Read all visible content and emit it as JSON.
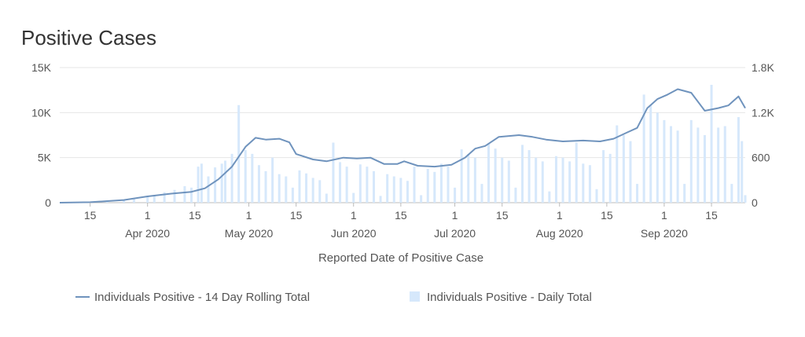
{
  "chart_data": {
    "type": "bar+line",
    "title": "Positive Cases",
    "xlabel": "Reported Date of Positive Case",
    "x_start": "2020-03-06",
    "x_end": "2020-09-25",
    "x_ticks": [
      {
        "date": "2020-03-15",
        "label": "15",
        "sub": ""
      },
      {
        "date": "2020-04-01",
        "label": "1",
        "sub": "Apr 2020"
      },
      {
        "date": "2020-04-15",
        "label": "15",
        "sub": ""
      },
      {
        "date": "2020-05-01",
        "label": "1",
        "sub": "May 2020"
      },
      {
        "date": "2020-05-15",
        "label": "15",
        "sub": ""
      },
      {
        "date": "2020-06-01",
        "label": "1",
        "sub": "Jun 2020"
      },
      {
        "date": "2020-06-15",
        "label": "15",
        "sub": ""
      },
      {
        "date": "2020-07-01",
        "label": "1",
        "sub": "Jul 2020"
      },
      {
        "date": "2020-07-15",
        "label": "15",
        "sub": ""
      },
      {
        "date": "2020-08-01",
        "label": "1",
        "sub": "Aug 2020"
      },
      {
        "date": "2020-08-15",
        "label": "15",
        "sub": ""
      },
      {
        "date": "2020-09-01",
        "label": "1",
        "sub": "Sep 2020"
      },
      {
        "date": "2020-09-15",
        "label": "15",
        "sub": ""
      }
    ],
    "y_left": {
      "min": 0,
      "max": 15000,
      "ticks": [
        0,
        5000,
        10000,
        15000
      ],
      "tick_labels": [
        "0",
        "5K",
        "10K",
        "15K"
      ]
    },
    "y_right": {
      "min": 0,
      "max": 1800,
      "ticks": [
        0,
        600,
        1200,
        1800
      ],
      "tick_labels": [
        "0",
        "600",
        "1.2K",
        "1.8K"
      ]
    },
    "legend_position": "bottom",
    "series": [
      {
        "name": "Individuals Positive - 14 Day Rolling Total",
        "kind": "line",
        "axis": "left",
        "color": "#6f93bd",
        "points": [
          [
            "2020-03-06",
            0
          ],
          [
            "2020-03-15",
            50
          ],
          [
            "2020-03-25",
            300
          ],
          [
            "2020-04-01",
            700
          ],
          [
            "2020-04-08",
            1000
          ],
          [
            "2020-04-14",
            1200
          ],
          [
            "2020-04-18",
            1600
          ],
          [
            "2020-04-22",
            2600
          ],
          [
            "2020-04-26",
            4000
          ],
          [
            "2020-04-30",
            6200
          ],
          [
            "2020-05-03",
            7200
          ],
          [
            "2020-05-06",
            7000
          ],
          [
            "2020-05-10",
            7100
          ],
          [
            "2020-05-13",
            6700
          ],
          [
            "2020-05-15",
            5400
          ],
          [
            "2020-05-20",
            4800
          ],
          [
            "2020-05-24",
            4600
          ],
          [
            "2020-05-29",
            5000
          ],
          [
            "2020-06-02",
            4900
          ],
          [
            "2020-06-06",
            5000
          ],
          [
            "2020-06-10",
            4300
          ],
          [
            "2020-06-14",
            4300
          ],
          [
            "2020-06-16",
            4600
          ],
          [
            "2020-06-20",
            4100
          ],
          [
            "2020-06-25",
            4000
          ],
          [
            "2020-06-30",
            4200
          ],
          [
            "2020-07-04",
            5000
          ],
          [
            "2020-07-07",
            6000
          ],
          [
            "2020-07-10",
            6300
          ],
          [
            "2020-07-14",
            7300
          ],
          [
            "2020-07-20",
            7500
          ],
          [
            "2020-07-24",
            7300
          ],
          [
            "2020-07-28",
            7000
          ],
          [
            "2020-08-02",
            6800
          ],
          [
            "2020-08-08",
            6900
          ],
          [
            "2020-08-13",
            6800
          ],
          [
            "2020-08-17",
            7100
          ],
          [
            "2020-08-21",
            7800
          ],
          [
            "2020-08-24",
            8300
          ],
          [
            "2020-08-27",
            10500
          ],
          [
            "2020-08-30",
            11500
          ],
          [
            "2020-09-02",
            12000
          ],
          [
            "2020-09-05",
            12600
          ],
          [
            "2020-09-09",
            12200
          ],
          [
            "2020-09-13",
            10200
          ],
          [
            "2020-09-17",
            10500
          ],
          [
            "2020-09-20",
            10800
          ],
          [
            "2020-09-23",
            11800
          ],
          [
            "2020-09-25",
            10500
          ]
        ]
      },
      {
        "name": "Individuals Positive - Daily Total",
        "kind": "bar",
        "axis": "right",
        "color": "#d6e8fb",
        "points": [
          [
            "2020-03-10",
            5
          ],
          [
            "2020-03-15",
            8
          ],
          [
            "2020-03-20",
            20
          ],
          [
            "2020-03-25",
            40
          ],
          [
            "2020-03-28",
            55
          ],
          [
            "2020-04-01",
            80
          ],
          [
            "2020-04-03",
            100
          ],
          [
            "2020-04-06",
            140
          ],
          [
            "2020-04-09",
            170
          ],
          [
            "2020-04-12",
            220
          ],
          [
            "2020-04-14",
            200
          ],
          [
            "2020-04-16",
            480
          ],
          [
            "2020-04-17",
            520
          ],
          [
            "2020-04-19",
            350
          ],
          [
            "2020-04-21",
            470
          ],
          [
            "2020-04-23",
            520
          ],
          [
            "2020-04-24",
            560
          ],
          [
            "2020-04-26",
            650
          ],
          [
            "2020-04-28",
            1300
          ],
          [
            "2020-04-30",
            700
          ],
          [
            "2020-05-02",
            650
          ],
          [
            "2020-05-04",
            500
          ],
          [
            "2020-05-06",
            420
          ],
          [
            "2020-05-08",
            600
          ],
          [
            "2020-05-10",
            380
          ],
          [
            "2020-05-12",
            350
          ],
          [
            "2020-05-14",
            200
          ],
          [
            "2020-05-16",
            430
          ],
          [
            "2020-05-18",
            390
          ],
          [
            "2020-05-20",
            330
          ],
          [
            "2020-05-22",
            300
          ],
          [
            "2020-05-24",
            120
          ],
          [
            "2020-05-26",
            800
          ],
          [
            "2020-05-28",
            540
          ],
          [
            "2020-05-30",
            480
          ],
          [
            "2020-06-01",
            130
          ],
          [
            "2020-06-03",
            510
          ],
          [
            "2020-06-05",
            480
          ],
          [
            "2020-06-07",
            420
          ],
          [
            "2020-06-09",
            90
          ],
          [
            "2020-06-11",
            380
          ],
          [
            "2020-06-13",
            350
          ],
          [
            "2020-06-15",
            330
          ],
          [
            "2020-06-17",
            290
          ],
          [
            "2020-06-19",
            480
          ],
          [
            "2020-06-21",
            100
          ],
          [
            "2020-06-23",
            450
          ],
          [
            "2020-06-25",
            410
          ],
          [
            "2020-06-27",
            520
          ],
          [
            "2020-06-29",
            480
          ],
          [
            "2020-07-01",
            200
          ],
          [
            "2020-07-03",
            710
          ],
          [
            "2020-07-05",
            650
          ],
          [
            "2020-07-07",
            600
          ],
          [
            "2020-07-09",
            250
          ],
          [
            "2020-07-11",
            780
          ],
          [
            "2020-07-13",
            720
          ],
          [
            "2020-07-15",
            600
          ],
          [
            "2020-07-17",
            560
          ],
          [
            "2020-07-19",
            200
          ],
          [
            "2020-07-21",
            770
          ],
          [
            "2020-07-23",
            700
          ],
          [
            "2020-07-25",
            600
          ],
          [
            "2020-07-27",
            550
          ],
          [
            "2020-07-29",
            150
          ],
          [
            "2020-07-31",
            620
          ],
          [
            "2020-08-02",
            600
          ],
          [
            "2020-08-04",
            550
          ],
          [
            "2020-08-06",
            800
          ],
          [
            "2020-08-08",
            520
          ],
          [
            "2020-08-10",
            500
          ],
          [
            "2020-08-12",
            180
          ],
          [
            "2020-08-14",
            700
          ],
          [
            "2020-08-16",
            650
          ],
          [
            "2020-08-18",
            1030
          ],
          [
            "2020-08-20",
            900
          ],
          [
            "2020-08-22",
            820
          ],
          [
            "2020-08-24",
            250
          ],
          [
            "2020-08-26",
            1440
          ],
          [
            "2020-08-28",
            1300
          ],
          [
            "2020-08-30",
            1200
          ],
          [
            "2020-09-01",
            1100
          ],
          [
            "2020-09-03",
            1020
          ],
          [
            "2020-09-05",
            960
          ],
          [
            "2020-09-07",
            250
          ],
          [
            "2020-09-09",
            1100
          ],
          [
            "2020-09-11",
            1000
          ],
          [
            "2020-09-13",
            900
          ],
          [
            "2020-09-15",
            1570
          ],
          [
            "2020-09-17",
            1000
          ],
          [
            "2020-09-19",
            1020
          ],
          [
            "2020-09-21",
            250
          ],
          [
            "2020-09-23",
            1140
          ],
          [
            "2020-09-24",
            820
          ],
          [
            "2020-09-25",
            100
          ]
        ]
      }
    ]
  }
}
